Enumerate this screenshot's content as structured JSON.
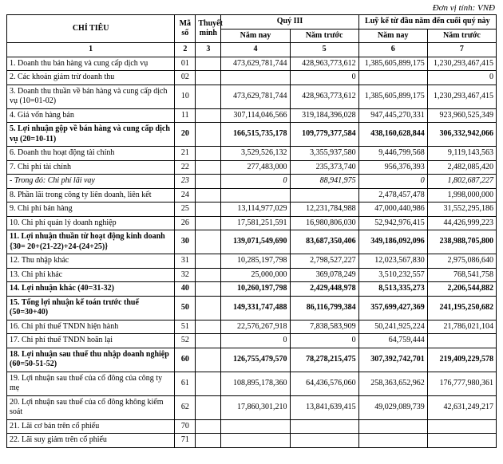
{
  "unit": "Đơn vị tính: VNĐ",
  "header": {
    "chi_tieu": "CHỈ TIÊU",
    "ma_so": "Mã số",
    "thuyet_minh": "Thuyết minh",
    "quy3": "Quý III",
    "luy_ke": "Luỹ kế từ đầu năm đến cuối quý này",
    "nam_nay": "Năm nay",
    "nam_truoc": "Năm trước",
    "col_nums": [
      "1",
      "2",
      "3",
      "4",
      "5",
      "6",
      "7"
    ]
  },
  "rows": [
    {
      "bold": false,
      "ital": false,
      "label": "1. Doanh thu bán hàng và cung cấp dịch vụ",
      "ms": "01",
      "tm": "",
      "q_nn": "473,629,781,744",
      "q_nt": "428,963,773,612",
      "l_nn": "1,385,605,899,175",
      "l_nt": "1,230,293,467,415"
    },
    {
      "bold": false,
      "ital": false,
      "label": "2. Các khoản giảm trừ doanh thu",
      "ms": "02",
      "tm": "",
      "q_nn": "",
      "q_nt": "0",
      "l_nn": "",
      "l_nt": "0"
    },
    {
      "bold": false,
      "ital": false,
      "label": "3. Doanh thu thuần về bán hàng và cung cấp dịch vụ (10=01-02)",
      "ms": "10",
      "tm": "",
      "q_nn": "473,629,781,744",
      "q_nt": "428,963,773,612",
      "l_nn": "1,385,605,899,175",
      "l_nt": "1,230,293,467,415"
    },
    {
      "bold": false,
      "ital": false,
      "label": "4. Giá vốn hàng bán",
      "ms": "11",
      "tm": "",
      "q_nn": "307,114,046,566",
      "q_nt": "319,184,396,028",
      "l_nn": "947,445,270,331",
      "l_nt": "923,960,525,349"
    },
    {
      "bold": true,
      "ital": false,
      "label": "5. Lợi nhuận gộp về bán hàng và cung cấp dịch vụ (20=10-11)",
      "ms": "20",
      "tm": "",
      "q_nn": "166,515,735,178",
      "q_nt": "109,779,377,584",
      "l_nn": "438,160,628,844",
      "l_nt": "306,332,942,066"
    },
    {
      "bold": false,
      "ital": false,
      "label": "6. Doanh thu hoạt động tài chính",
      "ms": "21",
      "tm": "",
      "q_nn": "3,529,526,132",
      "q_nt": "3,355,937,580",
      "l_nn": "9,446,799,568",
      "l_nt": "9,119,143,563"
    },
    {
      "bold": false,
      "ital": false,
      "label": "7. Chi phí tài chính",
      "ms": "22",
      "tm": "",
      "q_nn": "277,483,000",
      "q_nt": "235,373,740",
      "l_nn": "956,376,393",
      "l_nt": "2,482,085,420"
    },
    {
      "bold": false,
      "ital": true,
      "label": "- Trong đó: Chi phí lãi vay",
      "ms": "23",
      "tm": "",
      "q_nn": "0",
      "q_nt": "88,941,975",
      "l_nn": "0",
      "l_nt": "1,802,687,227"
    },
    {
      "bold": false,
      "ital": false,
      "label": "8. Phần lãi trong công ty liên doanh, liên kết",
      "ms": "24",
      "tm": "",
      "q_nn": "",
      "q_nt": "",
      "l_nn": "2,478,457,478",
      "l_nt": "1,998,000,000"
    },
    {
      "bold": false,
      "ital": false,
      "label": "9. Chi phí bán hàng",
      "ms": "25",
      "tm": "",
      "q_nn": "13,114,977,029",
      "q_nt": "12,231,784,988",
      "l_nn": "47,000,440,986",
      "l_nt": "31,552,295,186"
    },
    {
      "bold": false,
      "ital": false,
      "label": "10. Chi phí quản lý doanh nghiệp",
      "ms": "26",
      "tm": "",
      "q_nn": "17,581,251,591",
      "q_nt": "16,980,806,030",
      "l_nn": "52,942,976,415",
      "l_nt": "44,426,999,223"
    },
    {
      "bold": true,
      "ital": false,
      "label": "11. Lợi nhuận thuần từ hoạt động kinh doanh {30= 20+(21-22)+24-(24+25)}",
      "ms": "30",
      "tm": "",
      "q_nn": "139,071,549,690",
      "q_nt": "83,687,350,406",
      "l_nn": "349,186,092,096",
      "l_nt": "238,988,705,800"
    },
    {
      "bold": false,
      "ital": false,
      "label": "12. Thu nhập khác",
      "ms": "31",
      "tm": "",
      "q_nn": "10,285,197,798",
      "q_nt": "2,798,527,227",
      "l_nn": "12,023,567,830",
      "l_nt": "2,975,086,640"
    },
    {
      "bold": false,
      "ital": false,
      "label": "13. Chi phí khác",
      "ms": "32",
      "tm": "",
      "q_nn": "25,000,000",
      "q_nt": "369,078,249",
      "l_nn": "3,510,232,557",
      "l_nt": "768,541,758"
    },
    {
      "bold": true,
      "ital": false,
      "label": "14. Lợi nhuận khác (40=31-32)",
      "ms": "40",
      "tm": "",
      "q_nn": "10,260,197,798",
      "q_nt": "2,429,448,978",
      "l_nn": "8,513,335,273",
      "l_nt": "2,206,544,882"
    },
    {
      "bold": true,
      "ital": false,
      "label": "15. Tổng lợi nhuận kế toán trước thuế (50=30+40)",
      "ms": "50",
      "tm": "",
      "q_nn": "149,331,747,488",
      "q_nt": "86,116,799,384",
      "l_nn": "357,699,427,369",
      "l_nt": "241,195,250,682"
    },
    {
      "bold": false,
      "ital": false,
      "label": "16. Chi phí thuế TNDN hiện hành",
      "ms": "51",
      "tm": "",
      "q_nn": "22,576,267,918",
      "q_nt": "7,838,583,909",
      "l_nn": "50,241,925,224",
      "l_nt": "21,786,021,104"
    },
    {
      "bold": false,
      "ital": false,
      "label": "17. Chi phí thuế TNDN hoãn lại",
      "ms": "52",
      "tm": "",
      "q_nn": "0",
      "q_nt": "0",
      "l_nn": "64,759,444",
      "l_nt": ""
    },
    {
      "bold": true,
      "ital": false,
      "label": "18. Lợi nhuận sau thuế thu nhập doanh nghiệp (60=50-51-52)",
      "ms": "60",
      "tm": "",
      "q_nn": "126,755,479,570",
      "q_nt": "78,278,215,475",
      "l_nn": "307,392,742,701",
      "l_nt": "219,409,229,578"
    },
    {
      "bold": false,
      "ital": false,
      "label": "19. Lợi nhuận sau thuế của cổ đông của công ty mẹ",
      "ms": "61",
      "tm": "",
      "q_nn": "108,895,178,360",
      "q_nt": "64,436,576,060",
      "l_nn": "258,363,652,962",
      "l_nt": "176,777,980,361"
    },
    {
      "bold": false,
      "ital": false,
      "label": "20. Lợi nhuận sau thuế của cổ đông không kiểm soát",
      "ms": "62",
      "tm": "",
      "q_nn": "17,860,301,210",
      "q_nt": "13,841,639,415",
      "l_nn": "49,029,089,739",
      "l_nt": "42,631,249,217"
    },
    {
      "bold": false,
      "ital": false,
      "label": "21. Lãi cơ bản trên cổ phiếu",
      "ms": "70",
      "tm": "",
      "q_nn": "",
      "q_nt": "",
      "l_nn": "",
      "l_nt": ""
    },
    {
      "bold": false,
      "ital": false,
      "label": "22. Lãi suy giảm trên cổ phiếu",
      "ms": "71",
      "tm": "",
      "q_nn": "",
      "q_nt": "",
      "l_nn": "",
      "l_nt": ""
    }
  ]
}
